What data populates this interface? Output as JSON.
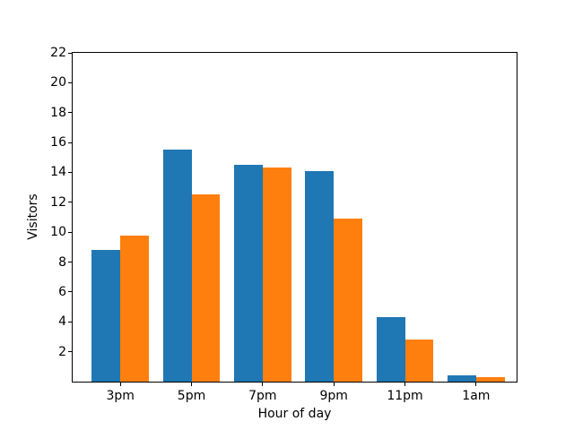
{
  "figure": {
    "background": "#ffffff"
  },
  "chart_data": {
    "type": "bar",
    "title": "",
    "xlabel": "Hour of day",
    "ylabel": "Visitors",
    "categories": [
      "3pm",
      "5pm",
      "7pm",
      "9pm",
      "11pm",
      "1am"
    ],
    "series": [
      {
        "name": "blue-series",
        "color": "#1f77b4",
        "values": [
          8.8,
          15.5,
          14.5,
          14.1,
          4.3,
          0.4
        ]
      },
      {
        "name": "orange-series",
        "color": "#ff7f0e",
        "values": [
          9.8,
          12.5,
          14.3,
          10.9,
          2.8,
          0.3
        ]
      }
    ],
    "ylim": [
      0,
      22
    ],
    "yticks": [
      2,
      4,
      6,
      8,
      10,
      12,
      14,
      16,
      18,
      20,
      22
    ],
    "grid": false,
    "legend_position": "none",
    "bar_width_fraction": 0.4
  }
}
